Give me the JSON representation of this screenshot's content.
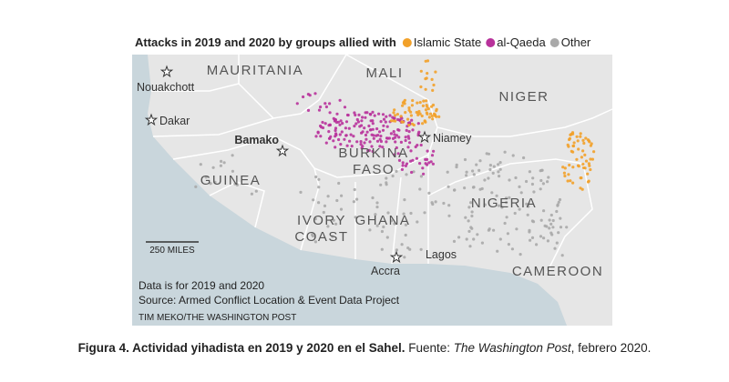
{
  "legend": {
    "title": "Attacks in 2019 and 2020 by groups allied with",
    "items": [
      {
        "label": "Islamic State",
        "color": "#f2a12a"
      },
      {
        "label": "al-Qaeda",
        "color": "#b8329b"
      },
      {
        "label": "Other",
        "color": "#a9a9a9"
      }
    ]
  },
  "countries": [
    {
      "lines": [
        "MAURITANIA"
      ]
    },
    {
      "lines": [
        "MALI"
      ]
    },
    {
      "lines": [
        "NIGER"
      ]
    },
    {
      "lines": [
        "BURKINA",
        "FASO"
      ]
    },
    {
      "lines": [
        "GUINEA"
      ]
    },
    {
      "lines": [
        "IVORY",
        "COAST"
      ]
    },
    {
      "lines": [
        "GHANA"
      ]
    },
    {
      "lines": [
        "NIGERIA"
      ]
    },
    {
      "lines": [
        "CAMEROON"
      ]
    }
  ],
  "cities": [
    {
      "label": "Nouakchott"
    },
    {
      "label": "Dakar"
    },
    {
      "label": "Bamako"
    },
    {
      "label": "Niamey"
    },
    {
      "label": "Accra"
    },
    {
      "label": "Lagos"
    }
  ],
  "scale": "250 MILES",
  "notes": [
    "Data is for 2019 and 2020",
    "Source: Armed Conflict Location & Event Data Project"
  ],
  "credit": "TIM MEKO/THE WASHINGTON POST",
  "caption": {
    "bold": "Figura 4. Actividad yihadista en 2019 y 2020 en el Sahel.",
    "text": " Fuente: ",
    "italic": "The Washington Post",
    "end": ", febrero 2020."
  }
}
